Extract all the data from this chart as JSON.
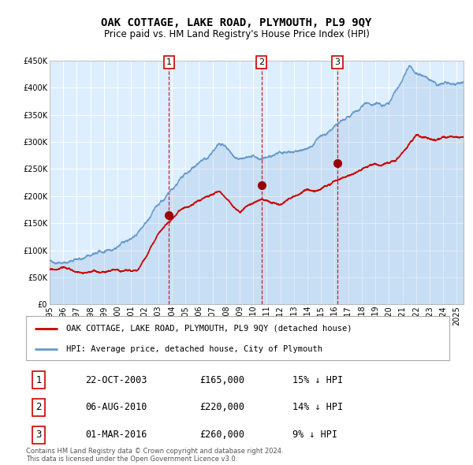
{
  "title": "OAK COTTAGE, LAKE ROAD, PLYMOUTH, PL9 9QY",
  "subtitle": "Price paid vs. HM Land Registry's House Price Index (HPI)",
  "legend_line1": "OAK COTTAGE, LAKE ROAD, PLYMOUTH, PL9 9QY (detached house)",
  "legend_line2": "HPI: Average price, detached house, City of Plymouth",
  "transactions": [
    {
      "num": 1,
      "date": "22-OCT-2003",
      "year": 2003.8,
      "price": 165000,
      "hpi_pct": "15% ↓ HPI"
    },
    {
      "num": 2,
      "date": "06-AUG-2010",
      "year": 2010.6,
      "price": 220000,
      "hpi_pct": "14% ↓ HPI"
    },
    {
      "num": 3,
      "date": "01-MAR-2016",
      "year": 2016.2,
      "price": 260000,
      "hpi_pct": "9% ↓ HPI"
    }
  ],
  "footer": "Contains HM Land Registry data © Crown copyright and database right 2024.\nThis data is licensed under the Open Government Licence v3.0.",
  "ylim": [
    0,
    450000
  ],
  "xlim_start": 1995.0,
  "xlim_end": 2025.5,
  "hpi_color": "#6699cc",
  "price_color": "#cc0000",
  "bg_color": "#ddeeff",
  "grid_color": "#ffffff",
  "vline_color": "#cc0000",
  "marker_color": "#990000",
  "hpi_control_years": [
    1995.0,
    1997.0,
    1999.0,
    2001.0,
    2003.0,
    2005.0,
    2007.5,
    2009.0,
    2010.5,
    2012.0,
    2014.0,
    2016.0,
    2018.0,
    2020.0,
    2021.5,
    2022.5,
    2023.5,
    2025.5
  ],
  "hpi_control_vals": [
    80000,
    84000,
    95000,
    125000,
    175000,
    220000,
    268000,
    235000,
    232000,
    242000,
    252000,
    292000,
    322000,
    328000,
    403000,
    388000,
    368000,
    368000
  ],
  "price_control_years": [
    1995.0,
    1997.0,
    1999.0,
    2001.5,
    2003.0,
    2004.5,
    2006.0,
    2007.5,
    2009.0,
    2010.6,
    2012.0,
    2014.0,
    2016.2,
    2017.5,
    2019.0,
    2020.5,
    2022.0,
    2023.5,
    2025.5
  ],
  "price_control_vals": [
    65000,
    65000,
    68000,
    80000,
    150000,
    190000,
    215000,
    228000,
    188000,
    220000,
    208000,
    242000,
    260000,
    275000,
    292000,
    302000,
    352000,
    348000,
    352000
  ]
}
